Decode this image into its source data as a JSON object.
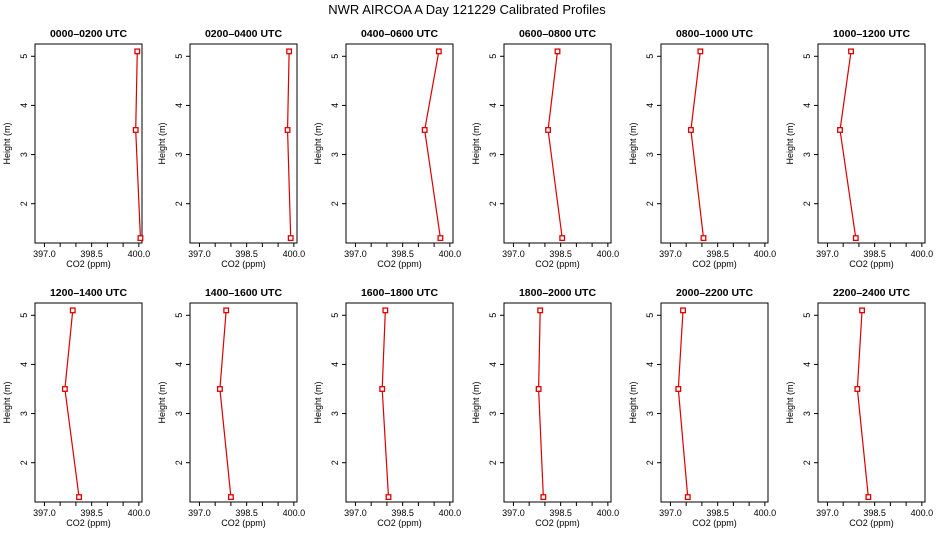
{
  "figure": {
    "title": "NWR AIRCOA A  Day 121229  Calibrated Profiles"
  },
  "chart_data": [
    {
      "type": "line",
      "title": "0000–0200 UTC",
      "xlabel": "CO2 (ppm)",
      "ylabel": "Height (m)",
      "xlim": [
        396.7,
        400.1
      ],
      "ylim": [
        1.2,
        5.25
      ],
      "x_ticks": [
        "397.0",
        "398.5",
        "400.0"
      ],
      "x_minor_ticks": [
        397.5,
        398.0,
        399.0,
        399.5
      ],
      "y_ticks": [
        "2",
        "3",
        "4",
        "5"
      ],
      "series": [
        {
          "x": [
            399.95,
            399.9,
            400.05
          ],
          "y": [
            5.1,
            3.5,
            1.3
          ],
          "color": "#dd0000"
        }
      ]
    },
    {
      "type": "line",
      "title": "0200–0400 UTC",
      "xlabel": "CO2 (ppm)",
      "ylabel": "Height (m)",
      "xlim": [
        396.7,
        400.1
      ],
      "ylim": [
        1.2,
        5.25
      ],
      "x_ticks": [
        "397.0",
        "398.5",
        "400.0"
      ],
      "x_minor_ticks": [
        397.5,
        398.0,
        399.0,
        399.5
      ],
      "y_ticks": [
        "2",
        "3",
        "4",
        "5"
      ],
      "series": [
        {
          "x": [
            399.85,
            399.8,
            399.9
          ],
          "y": [
            5.1,
            3.5,
            1.3
          ],
          "color": "#dd0000"
        }
      ]
    },
    {
      "type": "line",
      "title": "0400–0600 UTC",
      "xlabel": "CO2 (ppm)",
      "ylabel": "Height (m)",
      "xlim": [
        396.7,
        400.1
      ],
      "ylim": [
        1.2,
        5.25
      ],
      "x_ticks": [
        "397.0",
        "398.5",
        "400.0"
      ],
      "x_minor_ticks": [
        397.5,
        398.0,
        399.0,
        399.5
      ],
      "y_ticks": [
        "2",
        "3",
        "4",
        "5"
      ],
      "series": [
        {
          "x": [
            399.65,
            399.2,
            399.7
          ],
          "y": [
            5.1,
            3.5,
            1.3
          ],
          "color": "#dd0000"
        }
      ]
    },
    {
      "type": "line",
      "title": "0600–0800 UTC",
      "xlabel": "CO2 (ppm)",
      "ylabel": "Height (m)",
      "xlim": [
        396.7,
        400.1
      ],
      "ylim": [
        1.2,
        5.25
      ],
      "x_ticks": [
        "397.0",
        "398.5",
        "400.0"
      ],
      "x_minor_ticks": [
        397.5,
        398.0,
        399.0,
        399.5
      ],
      "y_ticks": [
        "2",
        "3",
        "4",
        "5"
      ],
      "series": [
        {
          "x": [
            398.4,
            398.1,
            398.55
          ],
          "y": [
            5.1,
            3.5,
            1.3
          ],
          "color": "#dd0000"
        }
      ]
    },
    {
      "type": "line",
      "title": "0800–1000 UTC",
      "xlabel": "CO2 (ppm)",
      "ylabel": "Height (m)",
      "xlim": [
        396.7,
        400.1
      ],
      "ylim": [
        1.2,
        5.25
      ],
      "x_ticks": [
        "397.0",
        "398.5",
        "400.0"
      ],
      "x_minor_ticks": [
        397.5,
        398.0,
        399.0,
        399.5
      ],
      "y_ticks": [
        "2",
        "3",
        "4",
        "5"
      ],
      "series": [
        {
          "x": [
            397.95,
            397.65,
            398.05
          ],
          "y": [
            5.1,
            3.5,
            1.3
          ],
          "color": "#dd0000"
        }
      ]
    },
    {
      "type": "line",
      "title": "1000–1200 UTC",
      "xlabel": "CO2 (ppm)",
      "ylabel": "Height (m)",
      "xlim": [
        396.7,
        400.1
      ],
      "ylim": [
        1.2,
        5.25
      ],
      "x_ticks": [
        "397.0",
        "398.5",
        "400.0"
      ],
      "x_minor_ticks": [
        397.5,
        398.0,
        399.0,
        399.5
      ],
      "y_ticks": [
        "2",
        "3",
        "4",
        "5"
      ],
      "series": [
        {
          "x": [
            397.75,
            397.4,
            397.9
          ],
          "y": [
            5.1,
            3.5,
            1.3
          ],
          "color": "#dd0000"
        }
      ]
    },
    {
      "type": "line",
      "title": "1200–1400 UTC",
      "xlabel": "CO2 (ppm)",
      "ylabel": "Height (m)",
      "xlim": [
        396.7,
        400.1
      ],
      "ylim": [
        1.2,
        5.25
      ],
      "x_ticks": [
        "397.0",
        "398.5",
        "400.0"
      ],
      "x_minor_ticks": [
        397.5,
        398.0,
        399.0,
        399.5
      ],
      "y_ticks": [
        "2",
        "3",
        "4",
        "5"
      ],
      "series": [
        {
          "x": [
            397.9,
            397.65,
            398.1
          ],
          "y": [
            5.1,
            3.5,
            1.3
          ],
          "color": "#dd0000"
        }
      ]
    },
    {
      "type": "line",
      "title": "1400–1600 UTC",
      "xlabel": "CO2 (ppm)",
      "ylabel": "Height (m)",
      "xlim": [
        396.7,
        400.1
      ],
      "ylim": [
        1.2,
        5.25
      ],
      "x_ticks": [
        "397.0",
        "398.5",
        "400.0"
      ],
      "x_minor_ticks": [
        397.5,
        398.0,
        399.0,
        399.5
      ],
      "y_ticks": [
        "2",
        "3",
        "4",
        "5"
      ],
      "series": [
        {
          "x": [
            397.85,
            397.65,
            398.0
          ],
          "y": [
            5.1,
            3.5,
            1.3
          ],
          "color": "#dd0000"
        }
      ]
    },
    {
      "type": "line",
      "title": "1600–1800 UTC",
      "xlabel": "CO2 (ppm)",
      "ylabel": "Height (m)",
      "xlim": [
        396.7,
        400.1
      ],
      "ylim": [
        1.2,
        5.25
      ],
      "x_ticks": [
        "397.0",
        "398.5",
        "400.0"
      ],
      "x_minor_ticks": [
        397.5,
        398.0,
        399.0,
        399.5
      ],
      "y_ticks": [
        "2",
        "3",
        "4",
        "5"
      ],
      "series": [
        {
          "x": [
            397.95,
            397.85,
            398.05
          ],
          "y": [
            5.1,
            3.5,
            1.3
          ],
          "color": "#dd0000"
        }
      ]
    },
    {
      "type": "line",
      "title": "1800–2000 UTC",
      "xlabel": "CO2 (ppm)",
      "ylabel": "Height (m)",
      "xlim": [
        396.7,
        400.1
      ],
      "ylim": [
        1.2,
        5.25
      ],
      "x_ticks": [
        "397.0",
        "398.5",
        "400.0"
      ],
      "x_minor_ticks": [
        397.5,
        398.0,
        399.0,
        399.5
      ],
      "y_ticks": [
        "2",
        "3",
        "4",
        "5"
      ],
      "series": [
        {
          "x": [
            397.85,
            397.8,
            397.95
          ],
          "y": [
            5.1,
            3.5,
            1.3
          ],
          "color": "#dd0000"
        }
      ]
    },
    {
      "type": "line",
      "title": "2000–2200 UTC",
      "xlabel": "CO2 (ppm)",
      "ylabel": "Height (m)",
      "xlim": [
        396.7,
        400.1
      ],
      "ylim": [
        1.2,
        5.25
      ],
      "x_ticks": [
        "397.0",
        "398.5",
        "400.0"
      ],
      "x_minor_ticks": [
        397.5,
        398.0,
        399.0,
        399.5
      ],
      "y_ticks": [
        "2",
        "3",
        "4",
        "5"
      ],
      "series": [
        {
          "x": [
            397.4,
            397.25,
            397.55
          ],
          "y": [
            5.1,
            3.5,
            1.3
          ],
          "color": "#dd0000"
        }
      ]
    },
    {
      "type": "line",
      "title": "2200–2400 UTC",
      "xlabel": "CO2 (ppm)",
      "ylabel": "Height (m)",
      "xlim": [
        396.7,
        400.1
      ],
      "ylim": [
        1.2,
        5.25
      ],
      "x_ticks": [
        "397.0",
        "398.5",
        "400.0"
      ],
      "x_minor_ticks": [
        397.5,
        398.0,
        399.0,
        399.5
      ],
      "y_ticks": [
        "2",
        "3",
        "4",
        "5"
      ],
      "series": [
        {
          "x": [
            398.1,
            397.95,
            398.3
          ],
          "y": [
            5.1,
            3.5,
            1.3
          ],
          "color": "#dd0000"
        }
      ]
    }
  ]
}
